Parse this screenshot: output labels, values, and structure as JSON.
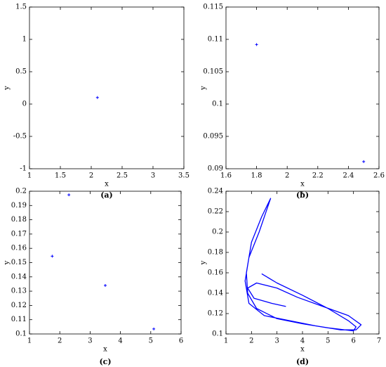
{
  "chart_data": [
    {
      "type": "scatter",
      "caption": "(a)",
      "xlabel": "x",
      "ylabel": "y",
      "color": "#0000ff",
      "xlim": [
        1,
        3.5
      ],
      "xticks": [
        1,
        1.5,
        2,
        2.5,
        3,
        3.5
      ],
      "ylim": [
        -1,
        1.5
      ],
      "yticks": [
        -1,
        -0.5,
        0,
        0.5,
        1,
        1.5
      ],
      "x": [
        2.1
      ],
      "values": [
        0.1
      ]
    },
    {
      "type": "scatter",
      "caption": "(b)",
      "xlabel": "x",
      "ylabel": "y",
      "color": "#0000ff",
      "xlim": [
        1.6,
        2.6
      ],
      "xticks": [
        1.6,
        1.8,
        2,
        2.2,
        2.4,
        2.6
      ],
      "ylim": [
        0.09,
        0.115
      ],
      "yticks": [
        0.09,
        0.095,
        0.1,
        0.105,
        0.11,
        0.115
      ],
      "x": [
        1.8,
        2.5
      ],
      "values": [
        0.1092,
        0.0911
      ]
    },
    {
      "type": "scatter",
      "caption": "(c)",
      "xlabel": "x",
      "ylabel": "y",
      "color": "#0000ff",
      "xlim": [
        1,
        6
      ],
      "xticks": [
        1,
        2,
        3,
        4,
        5,
        6
      ],
      "ylim": [
        0.1,
        0.2
      ],
      "yticks": [
        0.1,
        0.11,
        0.12,
        0.13,
        0.14,
        0.15,
        0.16,
        0.17,
        0.18,
        0.19,
        0.2
      ],
      "x": [
        1.75,
        2.3,
        3.5,
        5.1
      ],
      "values": [
        0.1545,
        0.1975,
        0.134,
        0.1035
      ]
    },
    {
      "type": "line",
      "caption": "(d)",
      "xlabel": "x",
      "ylabel": "y",
      "color": "#0000ff",
      "xlim": [
        1,
        7
      ],
      "xticks": [
        1,
        2,
        3,
        4,
        5,
        6,
        7
      ],
      "ylim": [
        0.1,
        0.24
      ],
      "yticks": [
        0.1,
        0.12,
        0.14,
        0.16,
        0.18,
        0.2,
        0.22,
        0.24
      ],
      "x": [
        2.4,
        3,
        4,
        5,
        5.8,
        6.1,
        6,
        5,
        4,
        3,
        2.2,
        1.85,
        1.8,
        2.0,
        2.4,
        2.75,
        2.3,
        1.9,
        1.75,
        1.9,
        2.5,
        3.5,
        4.5,
        5.5,
        6.1,
        6.3,
        5.8,
        4.8,
        3.8,
        3,
        2.2,
        1.85,
        2.1,
        2.8,
        3.35
      ],
      "values": [
        0.159,
        0.15,
        0.138,
        0.125,
        0.113,
        0.107,
        0.103,
        0.106,
        0.11,
        0.115,
        0.125,
        0.14,
        0.16,
        0.19,
        0.215,
        0.233,
        0.2,
        0.175,
        0.152,
        0.13,
        0.118,
        0.113,
        0.108,
        0.104,
        0.104,
        0.109,
        0.118,
        0.127,
        0.136,
        0.145,
        0.15,
        0.145,
        0.135,
        0.13,
        0.127
      ]
    }
  ]
}
